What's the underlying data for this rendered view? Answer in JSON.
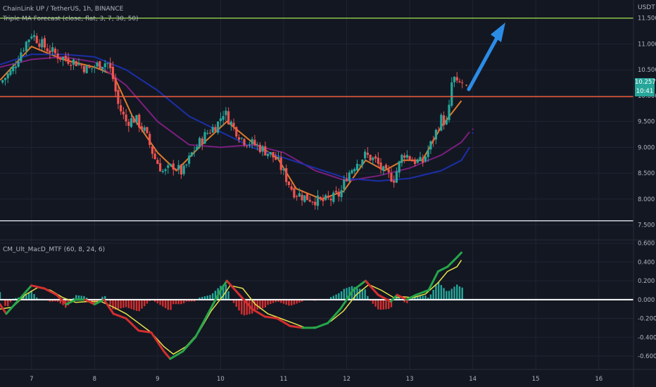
{
  "header": {
    "symbol_line": "ChainLink UP / TetherUS, 1h, BINANCE",
    "indicator_1": "Triple MA Forecast (close, flat, 3, 7, 30, 50)",
    "indicator_2": "CM_Ult_MacD_MTF (60, 8, 24, 6)",
    "currency": "USDT"
  },
  "badges": {
    "last_price": "10.257",
    "countdown": "10:41"
  },
  "colors": {
    "background": "#131722",
    "grid": "#1f2433",
    "candle_up": "#26a69a",
    "candle_down": "#ef5350",
    "ma_fast": "#e07b2a",
    "ma_mid": "#7b1f7e",
    "ma_slow": "#1c2fa8",
    "resistance_line": "#8bc34a",
    "support_line": "#f05a3a",
    "bottom_line": "#cfd3dc",
    "arrow": "#2b8ce6",
    "macd_fast": "#26a64a",
    "macd_slow": "#e6e34a",
    "histogram_up": "#26a69a",
    "histogram_down": "#d32f2f",
    "badge": "#26a69a"
  },
  "chart_data": [
    {
      "type": "candlestick",
      "x_ticks": [
        "7",
        "8",
        "9",
        "10",
        "11",
        "12",
        "13",
        "14",
        "15",
        "16"
      ],
      "y_ticks": [
        "11.500",
        "11.000",
        "10.500",
        "10.000",
        "9.500",
        "9.000",
        "8.500",
        "8.000",
        "7.500"
      ],
      "ylim": [
        7.25,
        11.85
      ],
      "xlim": [
        6.5,
        16.55
      ],
      "horizontal_lines": [
        {
          "name": "resistance",
          "value": 11.5
        },
        {
          "name": "support",
          "value": 9.98
        },
        {
          "name": "bottom",
          "value": 7.58
        }
      ],
      "close_path": [
        [
          6.5,
          10.25
        ],
        [
          6.7,
          10.5
        ],
        [
          6.85,
          10.9
        ],
        [
          7.0,
          11.2
        ],
        [
          7.2,
          10.95
        ],
        [
          7.45,
          10.75
        ],
        [
          7.7,
          10.65
        ],
        [
          7.9,
          10.5
        ],
        [
          8.05,
          10.6
        ],
        [
          8.2,
          10.65
        ],
        [
          8.28,
          10.4
        ],
        [
          8.38,
          9.8
        ],
        [
          8.5,
          9.5
        ],
        [
          8.65,
          9.55
        ],
        [
          8.8,
          9.3
        ],
        [
          8.95,
          8.8
        ],
        [
          9.1,
          8.5
        ],
        [
          9.25,
          8.65
        ],
        [
          9.4,
          8.5
        ],
        [
          9.55,
          8.9
        ],
        [
          9.7,
          9.15
        ],
        [
          9.8,
          9.3
        ],
        [
          9.95,
          9.45
        ],
        [
          10.05,
          9.7
        ],
        [
          10.2,
          9.4
        ],
        [
          10.35,
          9.15
        ],
        [
          10.55,
          9.05
        ],
        [
          10.75,
          8.9
        ],
        [
          10.9,
          8.75
        ],
        [
          11.0,
          8.5
        ],
        [
          11.15,
          8.15
        ],
        [
          11.3,
          8.05
        ],
        [
          11.45,
          8.0
        ],
        [
          11.6,
          7.95
        ],
        [
          11.75,
          8.0
        ],
        [
          11.9,
          8.1
        ],
        [
          12.0,
          8.45
        ],
        [
          12.15,
          8.7
        ],
        [
          12.3,
          8.85
        ],
        [
          12.45,
          8.75
        ],
        [
          12.6,
          8.5
        ],
        [
          12.75,
          8.4
        ],
        [
          12.9,
          8.9
        ],
        [
          13.05,
          8.75
        ],
        [
          13.2,
          8.7
        ],
        [
          13.35,
          9.1
        ],
        [
          13.5,
          9.55
        ],
        [
          13.6,
          9.45
        ],
        [
          13.68,
          10.4
        ],
        [
          13.75,
          10.2
        ],
        [
          13.82,
          10.257
        ]
      ],
      "series": [
        {
          "name": "fast MA",
          "points": [
            [
              6.5,
              10.3
            ],
            [
              7.0,
              10.95
            ],
            [
              7.5,
              10.7
            ],
            [
              8.0,
              10.55
            ],
            [
              8.3,
              10.4
            ],
            [
              8.6,
              9.6
            ],
            [
              9.0,
              8.9
            ],
            [
              9.3,
              8.55
            ],
            [
              9.7,
              9.05
            ],
            [
              10.1,
              9.5
            ],
            [
              10.5,
              9.1
            ],
            [
              10.9,
              8.8
            ],
            [
              11.2,
              8.2
            ],
            [
              11.6,
              8.0
            ],
            [
              11.95,
              8.15
            ],
            [
              12.3,
              8.75
            ],
            [
              12.6,
              8.55
            ],
            [
              12.9,
              8.75
            ],
            [
              13.2,
              8.75
            ],
            [
              13.5,
              9.4
            ],
            [
              13.82,
              9.9
            ]
          ]
        },
        {
          "name": "mid MA",
          "points": [
            [
              6.5,
              10.55
            ],
            [
              7.0,
              10.7
            ],
            [
              7.5,
              10.75
            ],
            [
              8.0,
              10.65
            ],
            [
              8.5,
              10.2
            ],
            [
              9.0,
              9.5
            ],
            [
              9.5,
              9.05
            ],
            [
              10.0,
              9.0
            ],
            [
              10.5,
              9.05
            ],
            [
              11.0,
              8.9
            ],
            [
              11.5,
              8.55
            ],
            [
              12.0,
              8.35
            ],
            [
              12.5,
              8.45
            ],
            [
              13.0,
              8.6
            ],
            [
              13.5,
              8.85
            ],
            [
              13.82,
              9.1
            ],
            [
              13.95,
              9.3
            ]
          ]
        },
        {
          "name": "slow MA",
          "points": [
            [
              6.5,
              10.6
            ],
            [
              7.0,
              10.8
            ],
            [
              7.5,
              10.8
            ],
            [
              8.0,
              10.75
            ],
            [
              8.5,
              10.5
            ],
            [
              9.0,
              10.1
            ],
            [
              9.5,
              9.6
            ],
            [
              10.0,
              9.3
            ],
            [
              10.5,
              9.0
            ],
            [
              11.0,
              8.8
            ],
            [
              11.5,
              8.6
            ],
            [
              12.0,
              8.4
            ],
            [
              12.5,
              8.35
            ],
            [
              13.0,
              8.4
            ],
            [
              13.5,
              8.55
            ],
            [
              13.82,
              8.75
            ],
            [
              13.95,
              9.0
            ]
          ]
        }
      ]
    },
    {
      "type": "macd",
      "y_ticks": [
        "0.600",
        "0.400",
        "0.200",
        "0.000",
        "-0.200",
        "-0.400",
        "-0.600"
      ],
      "ylim": [
        -0.72,
        0.62
      ],
      "series": [
        {
          "name": "macd fast",
          "points": [
            [
              6.5,
              -0.05
            ],
            [
              6.6,
              -0.15
            ],
            [
              6.8,
              0.0
            ],
            [
              7.0,
              0.15
            ],
            [
              7.2,
              0.12
            ],
            [
              7.4,
              0.05
            ],
            [
              7.55,
              -0.05
            ],
            [
              7.7,
              0.0
            ],
            [
              7.85,
              0.0
            ],
            [
              8.0,
              -0.05
            ],
            [
              8.15,
              0.0
            ],
            [
              8.3,
              -0.15
            ],
            [
              8.5,
              -0.2
            ],
            [
              8.7,
              -0.33
            ],
            [
              8.9,
              -0.35
            ],
            [
              9.1,
              -0.55
            ],
            [
              9.2,
              -0.63
            ],
            [
              9.4,
              -0.55
            ],
            [
              9.6,
              -0.4
            ],
            [
              9.8,
              -0.15
            ],
            [
              10.0,
              0.1
            ],
            [
              10.1,
              0.2
            ],
            [
              10.3,
              0.05
            ],
            [
              10.5,
              -0.1
            ],
            [
              10.7,
              -0.18
            ],
            [
              10.9,
              -0.2
            ],
            [
              11.1,
              -0.28
            ],
            [
              11.3,
              -0.3
            ],
            [
              11.5,
              -0.3
            ],
            [
              11.7,
              -0.25
            ],
            [
              11.9,
              -0.1
            ],
            [
              12.1,
              0.1
            ],
            [
              12.3,
              0.2
            ],
            [
              12.5,
              0.05
            ],
            [
              12.7,
              -0.02
            ],
            [
              12.8,
              0.05
            ],
            [
              12.95,
              0.0
            ],
            [
              13.1,
              0.05
            ],
            [
              13.3,
              0.1
            ],
            [
              13.45,
              0.3
            ],
            [
              13.6,
              0.35
            ],
            [
              13.75,
              0.45
            ],
            [
              13.82,
              0.5
            ]
          ]
        },
        {
          "name": "macd signal",
          "points": [
            [
              6.5,
              -0.1
            ],
            [
              6.7,
              -0.08
            ],
            [
              6.9,
              0.05
            ],
            [
              7.1,
              0.13
            ],
            [
              7.3,
              0.1
            ],
            [
              7.5,
              0.02
            ],
            [
              7.7,
              -0.03
            ],
            [
              7.9,
              -0.02
            ],
            [
              8.1,
              -0.02
            ],
            [
              8.3,
              -0.08
            ],
            [
              8.5,
              -0.15
            ],
            [
              8.7,
              -0.25
            ],
            [
              8.9,
              -0.35
            ],
            [
              9.1,
              -0.5
            ],
            [
              9.25,
              -0.58
            ],
            [
              9.45,
              -0.5
            ],
            [
              9.65,
              -0.35
            ],
            [
              9.85,
              -0.12
            ],
            [
              10.05,
              0.05
            ],
            [
              10.15,
              0.15
            ],
            [
              10.35,
              0.12
            ],
            [
              10.55,
              -0.05
            ],
            [
              10.75,
              -0.15
            ],
            [
              10.95,
              -0.2
            ],
            [
              11.15,
              -0.25
            ],
            [
              11.35,
              -0.3
            ],
            [
              11.55,
              -0.29
            ],
            [
              11.75,
              -0.23
            ],
            [
              11.95,
              -0.12
            ],
            [
              12.15,
              0.05
            ],
            [
              12.35,
              0.16
            ],
            [
              12.55,
              0.1
            ],
            [
              12.75,
              0.02
            ],
            [
              12.9,
              0.03
            ],
            [
              13.05,
              0.02
            ],
            [
              13.25,
              0.06
            ],
            [
              13.45,
              0.18
            ],
            [
              13.6,
              0.3
            ],
            [
              13.75,
              0.35
            ],
            [
              13.82,
              0.42
            ]
          ]
        }
      ]
    }
  ]
}
